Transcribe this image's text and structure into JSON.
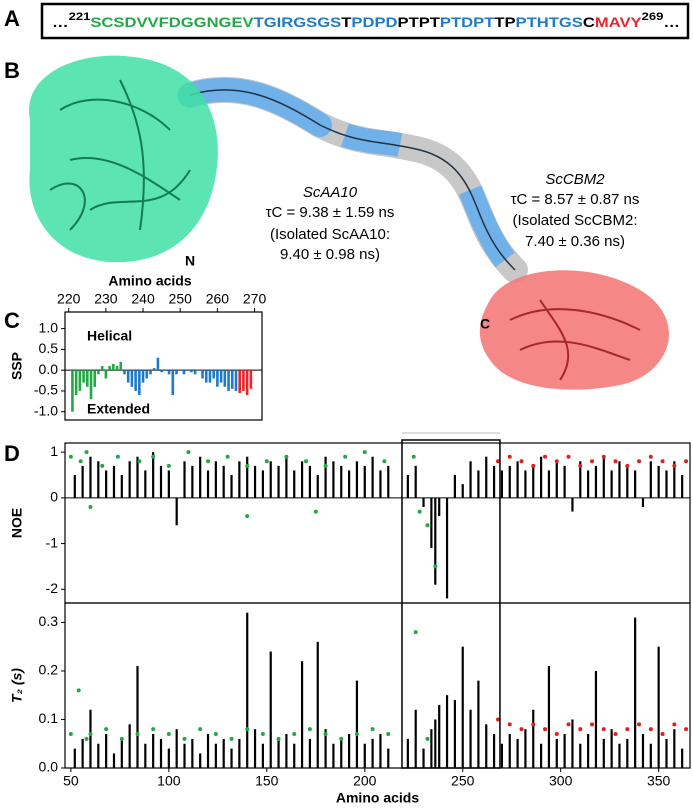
{
  "panel_labels": [
    "A",
    "B",
    "C",
    "D"
  ],
  "sequence": {
    "segments": [
      {
        "text": "…",
        "color": "#000000"
      },
      {
        "text": "221",
        "color": "#000000",
        "superscript": true
      },
      {
        "text": "SCSDVVFDGGNGEV",
        "color": "#22a844"
      },
      {
        "text": "TGIRGSGS",
        "color": "#1f7bc7"
      },
      {
        "text": "T",
        "color": "#000000"
      },
      {
        "text": "PDPD",
        "color": "#1f7bc7"
      },
      {
        "text": "PTPT",
        "color": "#000000"
      },
      {
        "text": "PTDPT",
        "color": "#1f7bc7"
      },
      {
        "text": "TP",
        "color": "#000000"
      },
      {
        "text": "PTHTGS",
        "color": "#1f7bc7"
      },
      {
        "text": "C",
        "color": "#000000"
      },
      {
        "text": "MAVY",
        "color": "#e8262b"
      },
      {
        "text": "269",
        "color": "#000000",
        "superscript": true
      },
      {
        "text": "…",
        "color": "#000000"
      }
    ]
  },
  "structure": {
    "aa10": {
      "name": "ScAA10",
      "tau": "τC = 9.38 ± 1.59 ns",
      "isolated": "(Isolated ScAA10:",
      "isolated_tau": "9.40 ± 0.98 ns)",
      "terminus": "N",
      "caption": "Amino acids"
    },
    "cbm2": {
      "name": "ScCBM2",
      "tau": "τC = 8.57 ± 0.87 ns",
      "isolated": "(Isolated ScCBM2:",
      "isolated_tau": "7.40 ± 0.36 ns)",
      "terminus": "C"
    }
  },
  "chart_data": [
    {
      "type": "bar",
      "ylabel": "SSP",
      "annotations": [
        "Helical",
        "Extended"
      ],
      "xlim": [
        219,
        272
      ],
      "xticks": [
        220,
        230,
        240,
        250,
        260,
        270
      ],
      "xaxis_position": "top",
      "ylim": [
        -1.2,
        1.4
      ],
      "yticks": [
        {
          "value": -1,
          "label": "-1.0"
        },
        {
          "value": -0.5,
          "label": "-0.5"
        },
        {
          "value": 0,
          "label": "0.0"
        },
        {
          "value": 0.5,
          "label": "0.5"
        },
        {
          "value": 1,
          "label": "1.0"
        }
      ],
      "series": [
        {
          "type": "bar",
          "color": "#22a844",
          "x": [
            221,
            222,
            223,
            224,
            225,
            226,
            227,
            228,
            229,
            230,
            231,
            232,
            233,
            234
          ],
          "values": [
            -1.0,
            -0.6,
            -0.5,
            -0.3,
            -0.4,
            -0.7,
            -0.4,
            -0.1,
            0.1,
            -0.2,
            0.1,
            0.15,
            0.1,
            0.2
          ]
        },
        {
          "type": "bar",
          "color": "#1f7bc7",
          "x": [
            235,
            236,
            237,
            238,
            239,
            240,
            241,
            242,
            243,
            244,
            245,
            246,
            247,
            248,
            249,
            250,
            251,
            252,
            253,
            254,
            255,
            256,
            257,
            258,
            259,
            260,
            261,
            262,
            263,
            264,
            265
          ],
          "values": [
            -0.1,
            -0.3,
            -0.4,
            -0.5,
            -0.6,
            -0.3,
            -0.2,
            -0.1,
            0.05,
            0.3,
            -0.05,
            0.0,
            -0.1,
            -0.6,
            -0.1,
            0.0,
            -0.1,
            0.0,
            -0.05,
            -0.1,
            0.0,
            -0.2,
            -0.3,
            -0.3,
            -0.2,
            -0.4,
            -0.3,
            -0.4,
            -0.5,
            -0.45,
            -0.5
          ]
        },
        {
          "type": "bar",
          "color": "#e8262b",
          "x": [
            266,
            267,
            268,
            269
          ],
          "values": [
            -0.55,
            -0.5,
            -0.6,
            -0.45
          ]
        }
      ]
    },
    {
      "type": "bar",
      "ylabel": "NOE",
      "xlim": [
        47,
        366
      ],
      "ylim": [
        -2.3,
        1.2
      ],
      "yticks": [
        -2,
        -1,
        0,
        1
      ],
      "series": [
        {
          "type": "bar",
          "color": "#000000",
          "x": [
            52,
            56,
            60,
            64,
            68,
            72,
            76,
            80,
            84,
            88,
            92,
            96,
            100,
            104,
            108,
            112,
            116,
            120,
            124,
            128,
            132,
            136,
            140,
            144,
            148,
            152,
            156,
            160,
            164,
            168,
            172,
            176,
            180,
            184,
            188,
            192,
            196,
            200,
            204,
            208,
            212,
            222,
            226,
            230,
            234,
            236,
            238,
            242,
            246,
            250,
            254,
            258,
            262,
            266,
            270,
            274,
            278,
            282,
            286,
            290,
            294,
            298,
            302,
            306,
            310,
            314,
            318,
            322,
            326,
            330,
            334,
            338,
            342,
            346,
            350,
            354,
            358,
            362
          ],
          "values": [
            0.5,
            0.7,
            0.9,
            0.8,
            0.6,
            0.7,
            0.5,
            0.8,
            0.9,
            0.6,
            1.0,
            0.7,
            0.6,
            -0.6,
            0.8,
            0.7,
            0.9,
            0.6,
            0.8,
            0.7,
            0.5,
            0.8,
            0.9,
            0.7,
            0.6,
            0.8,
            0.7,
            0.9,
            0.6,
            0.8,
            0.7,
            0.5,
            0.9,
            0.8,
            0.7,
            0.6,
            0.8,
            0.7,
            0.9,
            0.6,
            0.7,
            0.5,
            0.7,
            -0.2,
            -1.1,
            -1.9,
            -0.4,
            -2.2,
            0.5,
            0.3,
            0.8,
            0.6,
            0.9,
            0.7,
            0.6,
            0.7,
            0.8,
            0.6,
            0.7,
            0.9,
            0.6,
            0.8,
            0.7,
            -0.3,
            0.8,
            0.6,
            0.7,
            0.9,
            0.6,
            0.8,
            0.7,
            0.6,
            -0.2,
            0.8,
            0.7,
            0.6,
            0.8,
            0.5
          ]
        },
        {
          "type": "scatter",
          "color": "#22a844",
          "x": [
            50,
            55,
            58,
            66,
            74,
            85,
            92,
            100,
            110,
            120,
            130,
            140,
            150,
            160,
            170,
            180,
            190,
            200,
            210,
            60,
            140,
            175,
            225,
            228,
            232,
            236
          ],
          "values": [
            0.9,
            0.8,
            1.0,
            0.7,
            0.9,
            0.8,
            0.9,
            0.7,
            1.0,
            0.8,
            0.9,
            0.7,
            0.8,
            0.9,
            0.8,
            0.7,
            0.9,
            1.0,
            0.8,
            -0.2,
            -0.4,
            -0.3,
            0.9,
            -0.3,
            -0.6,
            -1.5
          ]
        },
        {
          "type": "scatter",
          "color": "#e02020",
          "x": [
            268,
            274,
            280,
            286,
            292,
            298,
            304,
            310,
            316,
            322,
            328,
            334,
            340,
            346,
            352,
            358,
            364
          ],
          "values": [
            0.8,
            0.9,
            0.8,
            0.7,
            0.9,
            0.8,
            0.9,
            0.7,
            0.8,
            0.9,
            0.8,
            0.7,
            0.8,
            0.9,
            0.8,
            0.7,
            0.8
          ]
        }
      ]
    },
    {
      "type": "bar",
      "ylabel": "T₂ (s)",
      "xlabel": "Amino acids",
      "xlim": [
        47,
        366
      ],
      "xticks": [
        50,
        100,
        150,
        200,
        250,
        300,
        350
      ],
      "xaxis_position": "bottom",
      "ylim": [
        0,
        0.34
      ],
      "yticks": [
        {
          "value": 0,
          "label": "0.0"
        },
        0.1,
        0.2,
        0.3
      ],
      "series": [
        {
          "type": "bar",
          "color": "#000000",
          "x": [
            52,
            56,
            60,
            64,
            68,
            72,
            76,
            80,
            84,
            88,
            92,
            96,
            100,
            104,
            108,
            112,
            116,
            120,
            124,
            128,
            132,
            136,
            140,
            144,
            148,
            152,
            156,
            160,
            164,
            168,
            172,
            176,
            180,
            184,
            188,
            192,
            196,
            200,
            204,
            208,
            212,
            222,
            226,
            230,
            234,
            236,
            238,
            242,
            246,
            250,
            254,
            258,
            262,
            266,
            270,
            274,
            278,
            282,
            286,
            290,
            294,
            298,
            302,
            306,
            310,
            314,
            318,
            322,
            326,
            330,
            334,
            338,
            342,
            346,
            350,
            354,
            358,
            362
          ],
          "values": [
            0.04,
            0.06,
            0.12,
            0.05,
            0.07,
            0.03,
            0.06,
            0.09,
            0.21,
            0.05,
            0.07,
            0.06,
            0.04,
            0.08,
            0.05,
            0.06,
            0.03,
            0.07,
            0.05,
            0.06,
            0.04,
            0.06,
            0.32,
            0.08,
            0.05,
            0.24,
            0.06,
            0.07,
            0.05,
            0.22,
            0.06,
            0.26,
            0.08,
            0.05,
            0.06,
            0.07,
            0.18,
            0.05,
            0.06,
            0.07,
            0.04,
            0.06,
            0.12,
            0.04,
            0.08,
            0.1,
            0.13,
            0.15,
            0.14,
            0.25,
            0.12,
            0.18,
            0.09,
            0.07,
            0.05,
            0.07,
            0.06,
            0.08,
            0.12,
            0.05,
            0.21,
            0.06,
            0.07,
            0.1,
            0.05,
            0.07,
            0.2,
            0.06,
            0.08,
            0.05,
            0.06,
            0.31,
            0.07,
            0.05,
            0.25,
            0.06,
            0.08,
            0.04
          ]
        },
        {
          "type": "scatter",
          "color": "#22a844",
          "x": [
            50,
            54,
            58,
            60,
            68,
            76,
            84,
            92,
            100,
            108,
            116,
            124,
            132,
            140,
            148,
            156,
            164,
            172,
            180,
            188,
            196,
            204,
            212,
            226,
            232
          ],
          "values": [
            0.07,
            0.16,
            0.06,
            0.07,
            0.08,
            0.06,
            0.07,
            0.08,
            0.07,
            0.06,
            0.08,
            0.07,
            0.06,
            0.08,
            0.07,
            0.06,
            0.07,
            0.08,
            0.07,
            0.06,
            0.07,
            0.08,
            0.07,
            0.28,
            0.06
          ]
        },
        {
          "type": "scatter",
          "color": "#e02020",
          "x": [
            268,
            274,
            280,
            286,
            292,
            298,
            304,
            310,
            316,
            322,
            328,
            334,
            340,
            346,
            352,
            358,
            364
          ],
          "values": [
            0.1,
            0.09,
            0.08,
            0.09,
            0.08,
            0.07,
            0.09,
            0.08,
            0.09,
            0.08,
            0.07,
            0.08,
            0.09,
            0.08,
            0.07,
            0.09,
            0.08
          ]
        }
      ]
    }
  ]
}
